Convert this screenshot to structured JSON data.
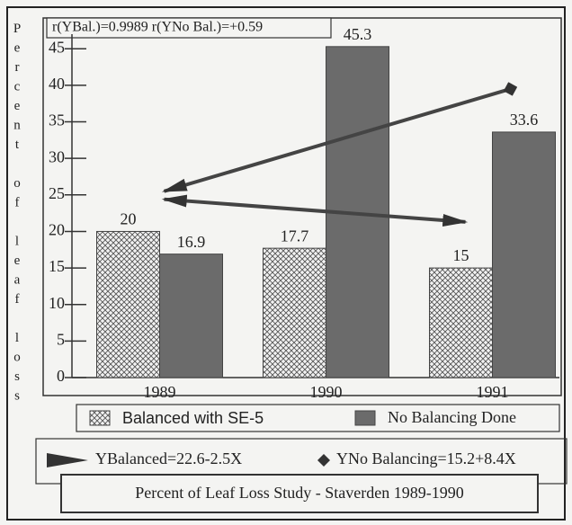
{
  "chart_data": {
    "type": "bar",
    "title": "Percent of Leaf Loss Study - Staverden 1989-1990",
    "annotation": "r(YBal.)=0.9989  r(YNo Bal.)=+0.59",
    "y_label": "Percent of leaf loss",
    "categories": [
      "1989",
      "1990",
      "1991"
    ],
    "series": [
      {
        "name": "Balanced with SE-5",
        "color": "hatch",
        "values": [
          20,
          17.7,
          15
        ]
      },
      {
        "name": "No Balancing Done",
        "color": "#6b6b6b",
        "values": [
          16.9,
          45.3,
          33.6
        ]
      }
    ],
    "trend_lines": [
      {
        "name": "YBalanced=22.6-2.5X",
        "x": [
          "1989",
          "1991"
        ],
        "values": [
          24.4,
          21.3
        ],
        "marker": "arrow"
      },
      {
        "name": "YNo Balancing=15.2+8.4X",
        "x": [
          "1989",
          "1991"
        ],
        "values": [
          25.5,
          39.5
        ],
        "marker": "diamond"
      }
    ],
    "ylim": [
      0,
      47
    ],
    "yticks": [
      0,
      5,
      10,
      15,
      20,
      25,
      30,
      35,
      40,
      45
    ]
  }
}
